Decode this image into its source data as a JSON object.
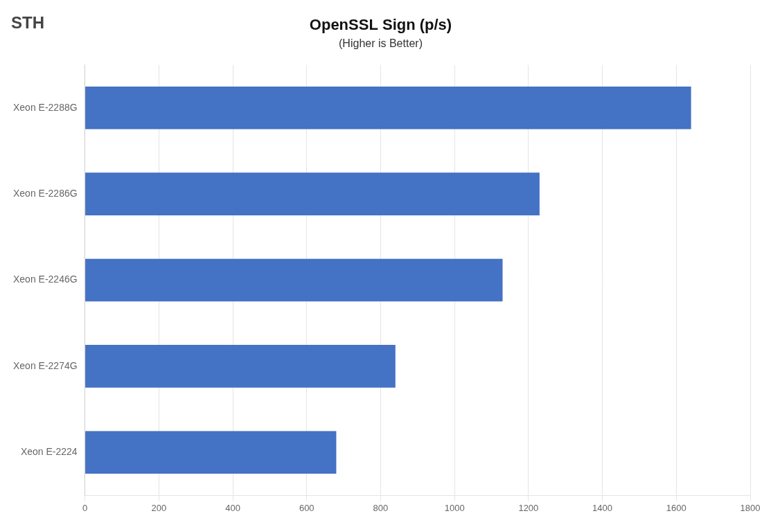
{
  "chart_data": {
    "type": "bar",
    "orientation": "horizontal",
    "title": "OpenSSL Sign (p/s)",
    "subtitle": "(Higher is Better)",
    "annotation": "STH",
    "categories": [
      "Xeon E-2224",
      "Xeon E-2274G",
      "Xeon E-2246G",
      "Xeon E-2286G",
      "Xeon E-2288G"
    ],
    "values": [
      680,
      840,
      1130,
      1230,
      1640
    ],
    "color": "#4472c4",
    "xlim": [
      0,
      1800
    ],
    "xticks": [
      0,
      200,
      400,
      600,
      800,
      1000,
      1200,
      1400,
      1600,
      1800
    ],
    "grid": true
  }
}
